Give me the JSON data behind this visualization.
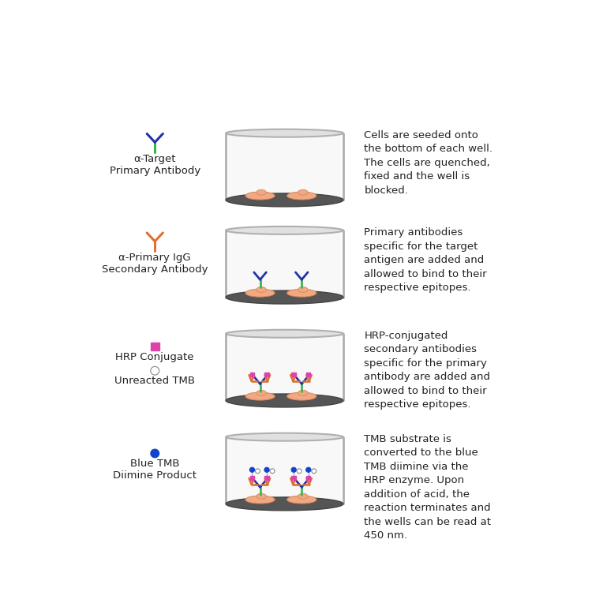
{
  "background_color": "#ffffff",
  "rows": [
    {
      "legend_label": "α-Target\nPrimary Antibody",
      "description": "Cells are seeded onto\nthe bottom of each well.\nThe cells are quenched,\nfixed and the well is\nblocked.",
      "well_content": "cells_only",
      "icon_type": "primary_ab"
    },
    {
      "legend_label": "α-Primary IgG\nSecondary Antibody",
      "description": "Primary antibodies\nspecific for the target\nantigen are added and\nallowed to bind to their\nrespective epitopes.",
      "well_content": "primary_antibodies",
      "icon_type": "secondary_ab"
    },
    {
      "legend_label1": "HRP Conjugate",
      "legend_label2": "Unreacted TMB",
      "description": "HRP-conjugated\nsecondary antibodies\nspecific for the primary\nantibody are added and\nallowed to bind to their\nrespective epitopes.",
      "well_content": "hrp_antibodies",
      "icon_type": "hrp_tmb"
    },
    {
      "legend_label": "Blue TMB\nDiimine Product",
      "description": "TMB substrate is\nconverted to the blue\nTMB diimine via the\nHRP enzyme. Upon\naddition of acid, the\nreaction terminates and\nthe wells can be read at\n450 nm.",
      "well_content": "blue_tmb",
      "icon_type": "blue_tmb_icon"
    }
  ],
  "colors": {
    "green": "#3ab54a",
    "blue_dark": "#2233aa",
    "orange": "#e07030",
    "pink_hrp": "#dd44aa",
    "cell_fill": "#f2a882",
    "cell_outline": "#d4885a",
    "well_wall": "#b0b0b0",
    "well_bottom_fill": "#555555",
    "well_interior": "#f8f8f8",
    "blue_tmb_color": "#1144cc",
    "text_color": "#222222"
  }
}
